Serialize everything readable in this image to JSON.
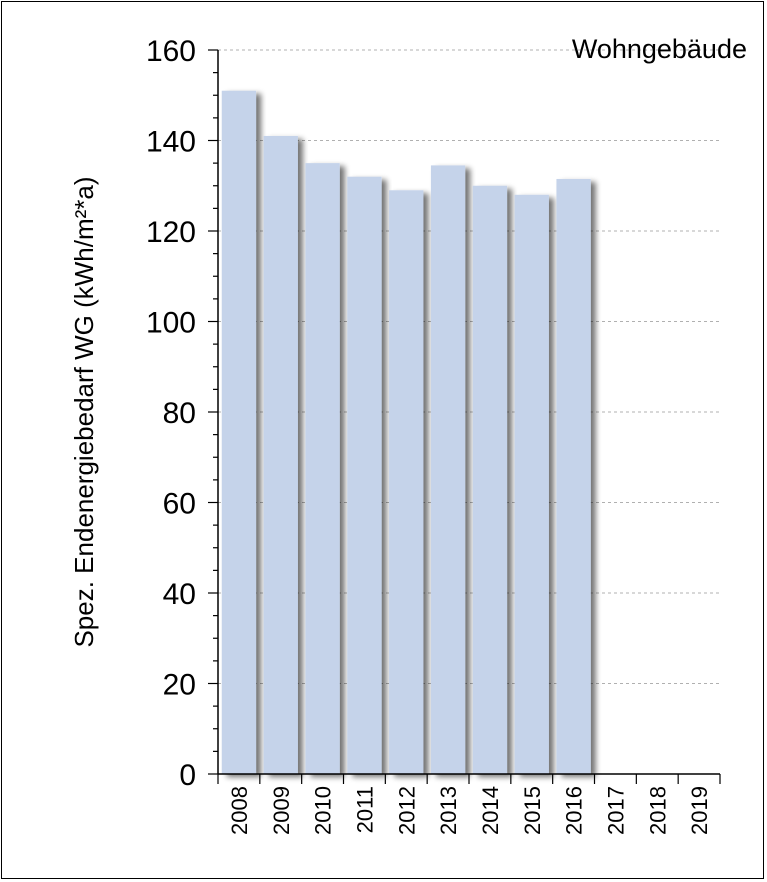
{
  "chart_data": {
    "type": "bar",
    "title": "Wohngebäude",
    "ylabel": "Spez. Endenergiebedarf WG  (kWh/m²*a)",
    "xlabel": "",
    "categories": [
      "2008",
      "2009",
      "2010",
      "2011",
      "2012",
      "2013",
      "2014",
      "2015",
      "2016",
      "2017",
      "2018",
      "2019"
    ],
    "values": [
      151,
      141,
      135,
      132,
      129,
      134.5,
      130,
      128,
      131.5,
      null,
      null,
      null
    ],
    "ylim": [
      0,
      160
    ],
    "yticks": [
      0,
      20,
      40,
      60,
      80,
      100,
      120,
      140,
      160
    ],
    "grid": true,
    "bar_color": "#c5d3ea"
  }
}
